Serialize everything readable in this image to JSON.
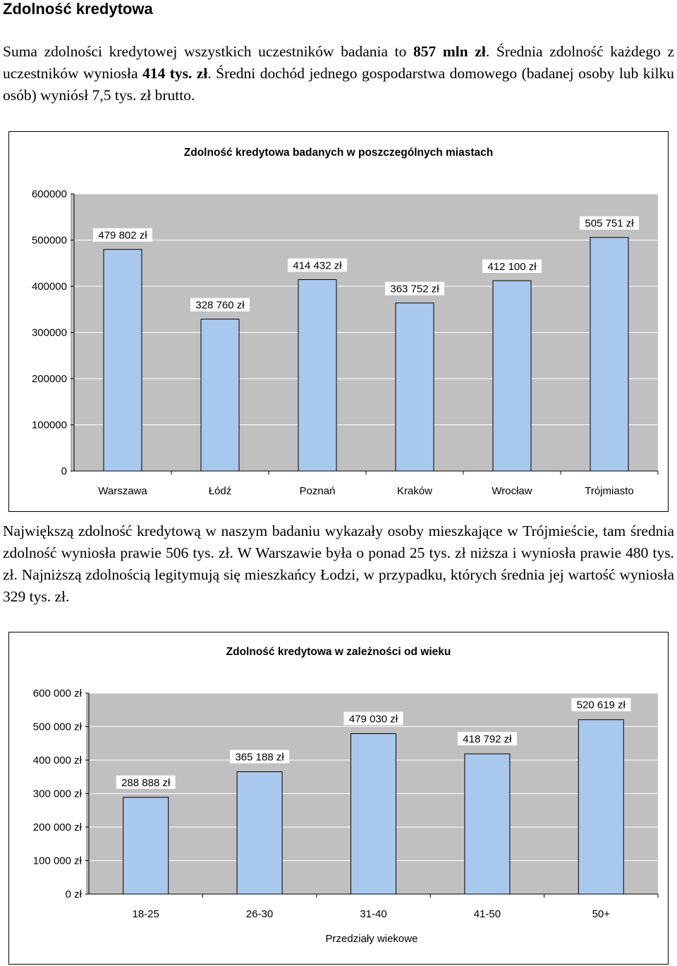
{
  "heading": "Zdolność kredytowa",
  "para1": {
    "a": "Suma zdolności kredytowej wszystkich uczestników badania to ",
    "b": "857 mln zł",
    "c": ". Średnia zdolność każdego z uczestników wyniosła ",
    "d": "414 tys. zł",
    "e": ". Średni dochód jednego gospodarstwa domowego (badanej osoby lub kilku osób) wyniósł 7,5 tys. zł brutto."
  },
  "para2": "Największą zdolność kredytową w naszym badaniu wykazały osoby mieszkające w Trójmieście, tam średnia zdolność wyniosła prawie 506 tys. zł. W Warszawie była o ponad 25 tys. zł niższa i wyniosła prawie 480 tys. zł. Najniższą zdolnością legitymują się mieszkańcy Łodzi, w przypadku, których średnia jej wartość wyniosła 329 tys. zł.",
  "colors": {
    "bar": "#a9c8ee",
    "bar_stroke": "#000000",
    "plot_bg": "#c0c0c0",
    "grid": "#ffffff"
  },
  "chart_data": [
    {
      "type": "bar",
      "title": "Zdolność kredytowa badanych w poszczególnych miastach",
      "categories": [
        "Warszawa",
        "Łódź",
        "Poznań",
        "Kraków",
        "Wrocław",
        "Trójmiasto"
      ],
      "values": [
        479802,
        328760,
        414432,
        363752,
        412100,
        505751
      ],
      "data_labels": [
        "479 802 zł",
        "328 760 zł",
        "414 432 zł",
        "363 752 zł",
        "412 100 zł",
        "505 751 zł"
      ],
      "yticks": [
        "0",
        "100000",
        "200000",
        "300000",
        "400000",
        "500000",
        "600000"
      ],
      "ylim": [
        0,
        600000
      ],
      "xlabel": "",
      "ylabel": "",
      "grid": true,
      "legend": "none"
    },
    {
      "type": "bar",
      "title": "Zdolność kredytowa w zależności od wieku",
      "categories": [
        "18-25",
        "26-30",
        "31-40",
        "41-50",
        "50+"
      ],
      "values": [
        288888,
        365188,
        479030,
        418792,
        520619
      ],
      "data_labels": [
        "288 888 zł",
        "365 188 zł",
        "479 030 zł",
        "418 792 zł",
        "520 619 zł"
      ],
      "yticks": [
        "0 zł",
        "100 000 zł",
        "200 000 zł",
        "300 000 zł",
        "400 000 zł",
        "500 000 zł",
        "600 000 zł"
      ],
      "ylim": [
        0,
        600000
      ],
      "xlabel": "Przedziały wiekowe",
      "ylabel": "",
      "grid": true,
      "legend": "none"
    }
  ]
}
